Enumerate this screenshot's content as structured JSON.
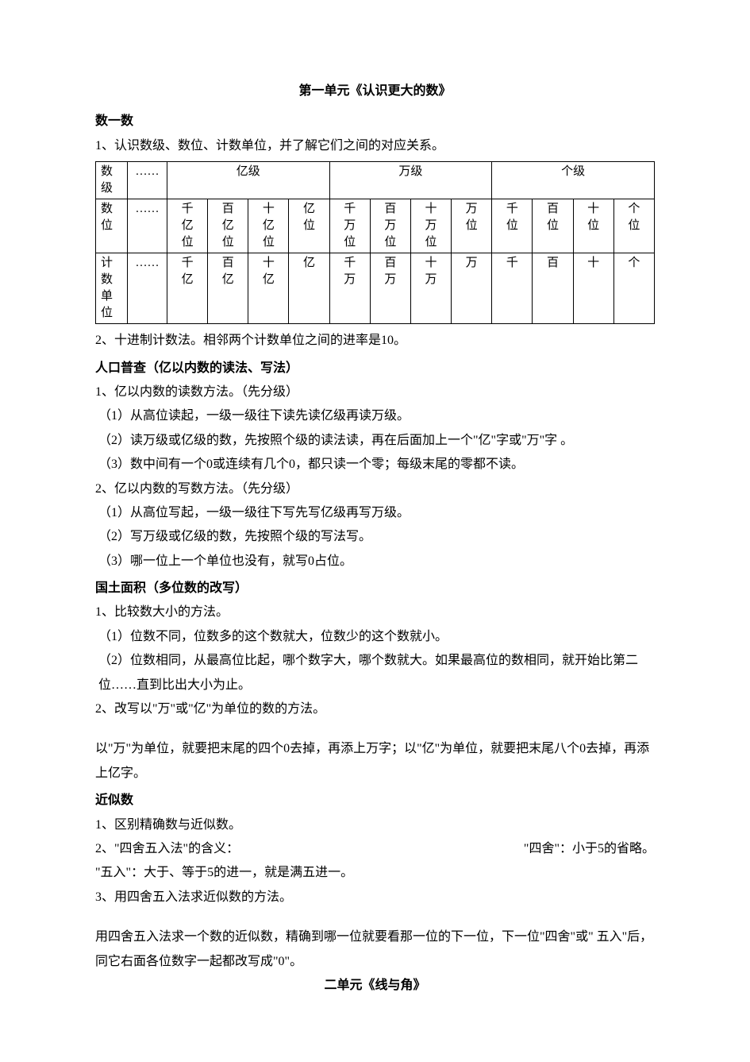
{
  "unit1": {
    "title": "第一单元《认识更大的数》",
    "section1": {
      "heading": "数一数",
      "line1": "1、认识数级、数位、计数单位，并了解它们之间的对应关系。"
    },
    "table": {
      "row1_label": "数级",
      "row2_label": "数位",
      "row3_label": "计数单位",
      "ellipsis": "……",
      "level_yi": "亿级",
      "level_wan": "万级",
      "level_ge": "个级",
      "r2": [
        "千亿位",
        "百亿位",
        "十亿位",
        "亿位",
        "千万位",
        "百万位",
        "十万位",
        "万位",
        "千位",
        "百位",
        "十位",
        "个位"
      ],
      "r3": [
        "千亿",
        "百亿",
        "十亿",
        "亿",
        "千万",
        "百万",
        "十万",
        "万",
        "千",
        "百",
        "十",
        "个"
      ]
    },
    "after_table": "2、十进制计数法。相邻两个计数单位之间的进率是10。",
    "section2": {
      "heading": "人口普查（亿以内数的读法、写法）",
      "l1": "1、亿以内数的读数方法。（先分级）",
      "l2": "（1）从高位读起，一级一级往下读先读亿级再读万级。",
      "l3": "（2）读万级或亿级的数，先按照个级的读法读，再在后面加上一个\"亿\"字或\"万\"字 。",
      "l4": "（3）数中间有一个0或连续有几个0，都只读一个零；每级末尾的零都不读。",
      "l5": "2、亿以内数的写数方法。（先分级）",
      "l6": "（1）从高位写起，一级一级往下写先写亿级再写万级。",
      "l7": "（2）写万级或亿级的数，先按照个级的写法写。",
      "l8": "（3）哪一位上一个单位也没有，就写0占位。"
    },
    "section3": {
      "heading": "国土面积（多位数的改写）",
      "l1": "1、比较数大小的方法。",
      "l2": "（1）位数不同，位数多的这个数就大，位数少的这个数就小。",
      "l3": "（2）位数相同，从最高位比起，哪个数字大，哪个数就大。如果最高位的数相同，就开始比第二位……直到比出大小为止。",
      "l4": "2、改写以\"万\"或\"亿\"为单位的数的方法。",
      "l5": "以\"万\"为单位，就要把末尾的四个0去掉，再添上万字；以\"亿\"为单位，就要把末尾八个0去掉，再添上亿字。"
    },
    "section4": {
      "heading": "近似数",
      "l1": "1、区别精确数与近似数。",
      "l2a": "2、\"四舍五入法\"的含义：",
      "l2b": "\"四舍\"：小于5的省略。",
      "l3": "\"五入\"：大于、等于5的进一，就是满五进一。",
      "l4": "3、用四舍五入法求近似数的方法。",
      "l5": "用四舍五入法求一个数的近似数，精确到哪一位就要看那一位的下一位，下一位\"四舍\"或\" 五入\"后，同它右面各位数字一起都改写成\"0\"。"
    }
  },
  "unit2": {
    "title": "二单元《线与角》"
  }
}
